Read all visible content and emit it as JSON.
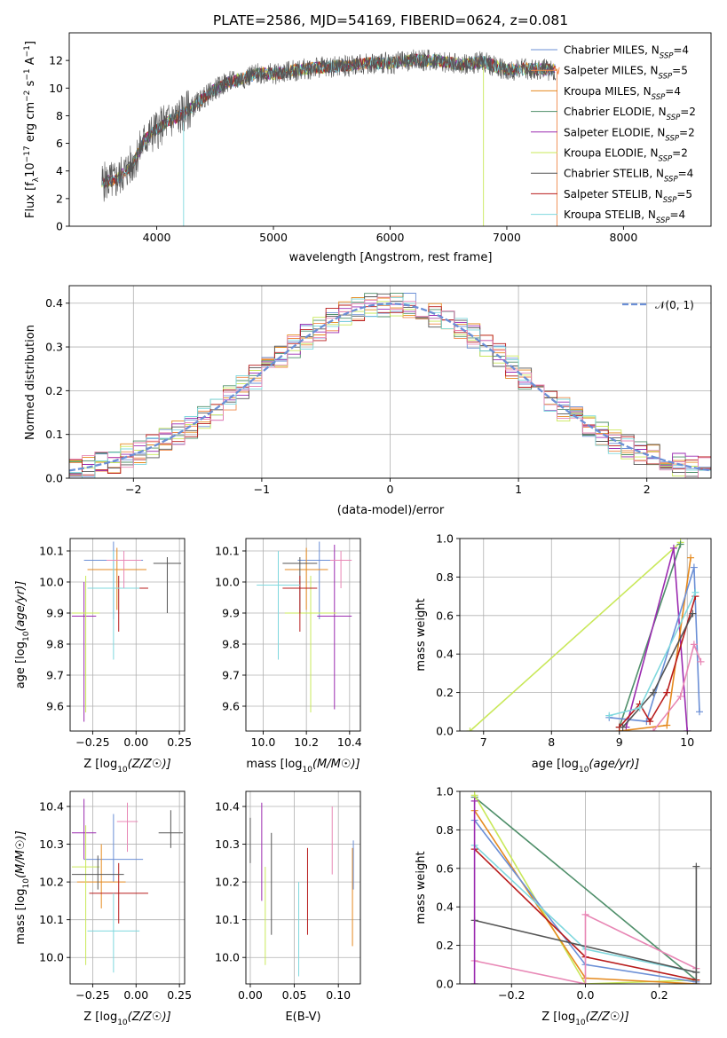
{
  "figure_title": "PLATE=2586, MJD=54169, FIBERID=0624, z=0.081",
  "colors": {
    "c1": "#6b8fd6",
    "c2": "#f08a4b",
    "c3": "#e58a1f",
    "c4": "#4f8f6a",
    "c5": "#9b2bb0",
    "c6": "#c9e85a",
    "c7": "#555555",
    "c8": "#b81c1c",
    "c9": "#7fd8de",
    "c10": "#e887b5",
    "data": "#555555"
  },
  "chart_data": [
    {
      "id": "spectrum",
      "type": "line",
      "title": "PLATE=2586, MJD=54169, FIBERID=0624, z=0.081",
      "xlabel": "wavelength [Angstrom, rest frame]",
      "ylabel": "Flux [fλ10⁻¹⁷ erg cm⁻² s⁻¹ A⁻¹]",
      "xlim": [
        3250,
        8750
      ],
      "ylim": [
        0,
        14
      ],
      "xticks": [
        4000,
        5000,
        6000,
        7000,
        8000
      ],
      "yticks": [
        0,
        2,
        4,
        6,
        8,
        10,
        12
      ],
      "grid": false,
      "legend_position": "right",
      "legend": [
        {
          "label": "Chabrier MILES, N",
          "sub": "SSP",
          "suffix": "=4",
          "color": "c1"
        },
        {
          "label": "Salpeter MILES, N",
          "sub": "SSP",
          "suffix": "=5",
          "color": "c2"
        },
        {
          "label": "Kroupa MILES, N",
          "sub": "SSP",
          "suffix": "=4",
          "color": "c3"
        },
        {
          "label": "Chabrier ELODIE, N",
          "sub": "SSP",
          "suffix": "=2",
          "color": "c4"
        },
        {
          "label": "Salpeter ELODIE, N",
          "sub": "SSP",
          "suffix": "=2",
          "color": "c5"
        },
        {
          "label": "Kroupa ELODIE, N",
          "sub": "SSP",
          "suffix": "=2",
          "color": "c6"
        },
        {
          "label": "Chabrier STELIB, N",
          "sub": "SSP",
          "suffix": "=4",
          "color": "c7"
        },
        {
          "label": "Salpeter STELIB, N",
          "sub": "SSP",
          "suffix": "=5",
          "color": "c8"
        },
        {
          "label": "Kroupa STELIB, N",
          "sub": "SSP",
          "suffix": "=4",
          "color": "c9"
        }
      ],
      "continuum": {
        "x": [
          3530,
          3650,
          3800,
          3900,
          4000,
          4100,
          4200,
          4300,
          4400,
          4500,
          4600,
          4700,
          4800,
          4900,
          5000,
          5200,
          5400,
          5600,
          5800,
          6000,
          6200,
          6400,
          6600,
          6800,
          7000,
          7200,
          7400
        ],
        "y": [
          3.2,
          3.3,
          4.6,
          6.3,
          7.0,
          7.6,
          8.0,
          8.6,
          9.3,
          9.9,
          10.4,
          10.6,
          10.9,
          11.1,
          11.0,
          11.3,
          11.5,
          11.6,
          11.8,
          11.8,
          12.0,
          12.0,
          11.7,
          11.9,
          11.3,
          11.4,
          11.3
        ]
      }
    },
    {
      "id": "residuals",
      "type": "line",
      "xlabel": "(data-model)/error",
      "ylabel": "Normed distribution",
      "xlim": [
        -2.5,
        2.5
      ],
      "ylim": [
        0,
        0.44
      ],
      "xticks": [
        -2,
        -1,
        0,
        1,
        2
      ],
      "yticks": [
        0.0,
        0.1,
        0.2,
        0.3,
        0.4
      ],
      "grid": true,
      "legend_position": "top-right",
      "normal_label": "𝒩(0, 1)"
    },
    {
      "id": "z-vs-age",
      "type": "scatter",
      "xlabel": "Z [log10(Z/Z☉)]",
      "ylabel": "age [log10(age/yr)]",
      "xlim": [
        -0.38,
        0.28
      ],
      "ylim": [
        9.52,
        10.14
      ],
      "xticks": [
        -0.25,
        0.0,
        0.25
      ],
      "yticks": [
        9.6,
        9.7,
        9.8,
        9.9,
        10.0,
        10.1
      ],
      "grid": true,
      "points": [
        {
          "x": -0.13,
          "y": 10.07,
          "xerr": 0.17,
          "ylo": 9.88,
          "yhi": 10.13,
          "color": "c1"
        },
        {
          "x": -0.11,
          "y": 10.04,
          "xerr": 0.17,
          "ylo": 9.91,
          "yhi": 10.11,
          "color": "c3"
        },
        {
          "x": -0.3,
          "y": 9.89,
          "xerr": 0.07,
          "ylo": 9.55,
          "yhi": 10.0,
          "color": "c5"
        },
        {
          "x": -0.29,
          "y": 9.9,
          "xerr": 0.08,
          "ylo": 9.58,
          "yhi": 10.02,
          "color": "c6"
        },
        {
          "x": 0.18,
          "y": 10.06,
          "xerr": 0.08,
          "ylo": 9.9,
          "yhi": 10.08,
          "color": "c7"
        },
        {
          "x": -0.1,
          "y": 9.98,
          "xerr": 0.17,
          "ylo": 9.84,
          "yhi": 10.02,
          "color": "c8"
        },
        {
          "x": -0.13,
          "y": 9.98,
          "xerr": 0.15,
          "ylo": 9.75,
          "yhi": 10.1,
          "color": "c9"
        },
        {
          "x": -0.07,
          "y": 10.07,
          "xerr": 0.1,
          "ylo": 9.98,
          "yhi": 10.1,
          "color": "c10"
        }
      ]
    },
    {
      "id": "mass-vs-age",
      "type": "scatter",
      "xlabel": "mass [log10(M/M☉)]",
      "ylabel": "",
      "xlim": [
        9.92,
        10.45
      ],
      "ylim": [
        9.52,
        10.14
      ],
      "xticks": [
        10.0,
        10.2,
        10.4
      ],
      "yticks": [
        9.6,
        9.7,
        9.8,
        9.9,
        10.0,
        10.1
      ],
      "grid": true,
      "points": [
        {
          "x": 10.26,
          "y": 10.07,
          "xerr": 0.1,
          "ylo": 9.88,
          "yhi": 10.13,
          "color": "c1"
        },
        {
          "x": 10.2,
          "y": 10.04,
          "xerr": 0.1,
          "ylo": 9.91,
          "yhi": 10.11,
          "color": "c3"
        },
        {
          "x": 10.33,
          "y": 9.89,
          "xerr": 0.08,
          "ylo": 9.59,
          "yhi": 10.12,
          "color": "c5"
        },
        {
          "x": 10.22,
          "y": 9.9,
          "xerr": 0.12,
          "ylo": 9.58,
          "yhi": 10.02,
          "color": "c6"
        },
        {
          "x": 10.17,
          "y": 10.06,
          "xerr": 0.08,
          "ylo": 9.9,
          "yhi": 10.08,
          "color": "c7"
        },
        {
          "x": 10.17,
          "y": 9.98,
          "xerr": 0.08,
          "ylo": 9.84,
          "yhi": 10.02,
          "color": "c8"
        },
        {
          "x": 10.07,
          "y": 9.99,
          "xerr": 0.1,
          "ylo": 9.75,
          "yhi": 10.1,
          "color": "c9"
        },
        {
          "x": 10.36,
          "y": 10.07,
          "xerr": 0.05,
          "ylo": 9.98,
          "yhi": 10.1,
          "color": "c10"
        }
      ]
    },
    {
      "id": "age-vs-weight",
      "type": "line",
      "xlabel": "age [log10(age/yr)]",
      "ylabel": "mass weight",
      "xlim": [
        6.65,
        10.35
      ],
      "ylim": [
        0,
        1
      ],
      "xticks": [
        7,
        8,
        9,
        10
      ],
      "yticks": [
        0.0,
        0.2,
        0.4,
        0.6,
        0.8,
        1.0
      ],
      "grid": true,
      "series": [
        {
          "color": "c6",
          "x": [
            6.8,
            9.9
          ],
          "y": [
            0.0,
            0.98
          ]
        },
        {
          "color": "c4",
          "x": [
            9.0,
            9.9
          ],
          "y": [
            0.02,
            0.97
          ]
        },
        {
          "color": "c5",
          "x": [
            9.1,
            9.8,
            10.0
          ],
          "y": [
            0.02,
            0.95,
            0.0
          ]
        },
        {
          "color": "c3",
          "x": [
            9.0,
            9.7,
            10.05
          ],
          "y": [
            0.0,
            0.03,
            0.9
          ]
        },
        {
          "color": "c1",
          "x": [
            8.85,
            9.4,
            10.1,
            10.18
          ],
          "y": [
            0.07,
            0.05,
            0.85,
            0.1
          ]
        },
        {
          "color": "c8",
          "x": [
            9.0,
            9.3,
            9.45,
            9.7,
            10.12
          ],
          "y": [
            0.02,
            0.14,
            0.05,
            0.2,
            0.7
          ]
        },
        {
          "color": "c7",
          "x": [
            9.05,
            9.5,
            10.08
          ],
          "y": [
            0.02,
            0.2,
            0.61
          ]
        },
        {
          "color": "c9",
          "x": [
            8.85,
            9.3,
            10.12
          ],
          "y": [
            0.08,
            0.12,
            0.72
          ]
        },
        {
          "color": "c10",
          "x": [
            9.5,
            9.9,
            10.1,
            10.2
          ],
          "y": [
            0.0,
            0.18,
            0.45,
            0.36
          ]
        }
      ]
    },
    {
      "id": "z-vs-mass",
      "type": "scatter",
      "xlabel": "Z [log10(Z/Z☉)]",
      "ylabel": "mass [log10(M/M☉)]",
      "xlim": [
        -0.38,
        0.28
      ],
      "ylim": [
        9.93,
        10.44
      ],
      "xticks": [
        -0.25,
        0.0,
        0.25
      ],
      "yticks": [
        10.0,
        10.1,
        10.2,
        10.3,
        10.4
      ],
      "grid": true,
      "points": [
        {
          "x": -0.13,
          "y": 10.26,
          "xerr": 0.17,
          "ylo": 10.2,
          "yhi": 10.38,
          "color": "c1"
        },
        {
          "x": -0.2,
          "y": 10.2,
          "xerr": 0.14,
          "ylo": 10.13,
          "yhi": 10.3,
          "color": "c3"
        },
        {
          "x": -0.3,
          "y": 10.33,
          "xerr": 0.07,
          "ylo": 10.26,
          "yhi": 10.42,
          "color": "c5"
        },
        {
          "x": -0.29,
          "y": 10.24,
          "xerr": 0.08,
          "ylo": 9.98,
          "yhi": 10.35,
          "color": "c6"
        },
        {
          "x": 0.2,
          "y": 10.33,
          "xerr": 0.07,
          "ylo": 10.29,
          "yhi": 10.39,
          "color": "c7"
        },
        {
          "x": -0.1,
          "y": 10.17,
          "xerr": 0.17,
          "ylo": 10.09,
          "yhi": 10.25,
          "color": "c8"
        },
        {
          "x": -0.13,
          "y": 10.07,
          "xerr": 0.15,
          "ylo": 9.96,
          "yhi": 10.17,
          "color": "c9"
        },
        {
          "x": -0.05,
          "y": 10.36,
          "xerr": 0.06,
          "ylo": 10.28,
          "yhi": 10.41,
          "color": "c10"
        },
        {
          "x": -0.22,
          "y": 10.22,
          "xerr": 0.15,
          "ylo": 10.18,
          "yhi": 10.27,
          "color": "c7"
        }
      ]
    },
    {
      "id": "ebv-vs-mass",
      "type": "scatter",
      "xlabel": "E(B-V)",
      "ylabel": "",
      "xlim": [
        -0.005,
        0.125
      ],
      "ylim": [
        9.93,
        10.44
      ],
      "xticks": [
        0.0,
        0.05,
        0.1
      ],
      "yticks": [
        10.0,
        10.1,
        10.2,
        10.3,
        10.4
      ],
      "grid": true,
      "points": [
        {
          "x": 0.0,
          "ylo": 10.25,
          "yhi": 10.37,
          "color": "c7"
        },
        {
          "x": 0.013,
          "ylo": 10.15,
          "yhi": 10.41,
          "color": "c5"
        },
        {
          "x": 0.017,
          "ylo": 9.98,
          "yhi": 10.24,
          "color": "c6"
        },
        {
          "x": 0.024,
          "ylo": 10.06,
          "yhi": 10.33,
          "color": "c7"
        },
        {
          "x": 0.055,
          "ylo": 9.95,
          "yhi": 10.2,
          "color": "c9"
        },
        {
          "x": 0.065,
          "ylo": 10.06,
          "yhi": 10.29,
          "color": "c8"
        },
        {
          "x": 0.093,
          "ylo": 10.22,
          "yhi": 10.4,
          "color": "c10"
        },
        {
          "x": 0.116,
          "ylo": 10.03,
          "yhi": 10.29,
          "color": "c3"
        },
        {
          "x": 0.117,
          "ylo": 10.18,
          "yhi": 10.31,
          "color": "c1"
        }
      ]
    },
    {
      "id": "z-vs-weight",
      "type": "line",
      "xlabel": "Z [log10(Z/Z☉)]",
      "ylabel": "mass weight",
      "xlim": [
        -0.34,
        0.34
      ],
      "ylim": [
        0,
        1
      ],
      "xticks": [
        -0.2,
        0.0,
        0.2
      ],
      "yticks": [
        0.0,
        0.2,
        0.4,
        0.6,
        0.8,
        1.0
      ],
      "grid": true,
      "series": [
        {
          "color": "c4",
          "x": [
            -0.3,
            0.3
          ],
          "y": [
            0.97,
            0.02
          ]
        },
        {
          "color": "c6",
          "x": [
            -0.3,
            0.0,
            0.3
          ],
          "y": [
            0.98,
            0.0,
            0.02
          ]
        },
        {
          "color": "c3",
          "x": [
            -0.3,
            0.0,
            0.3
          ],
          "y": [
            0.9,
            0.03,
            0.0
          ]
        },
        {
          "color": "c1",
          "x": [
            -0.3,
            0.0,
            0.3
          ],
          "y": [
            0.85,
            0.1,
            0.01
          ]
        },
        {
          "color": "c9",
          "x": [
            -0.3,
            0.0,
            0.3
          ],
          "y": [
            0.72,
            0.18,
            0.06
          ]
        },
        {
          "color": "c8",
          "x": [
            -0.3,
            0.0,
            0.3
          ],
          "y": [
            0.7,
            0.14,
            0.02
          ]
        },
        {
          "color": "c7",
          "x": [
            -0.3,
            0.3
          ],
          "y": [
            0.33,
            0.06
          ]
        },
        {
          "color": "c10",
          "x": [
            -0.3,
            0.0,
            0.0,
            0.3
          ],
          "y": [
            0.12,
            0.0,
            0.36,
            0.08
          ]
        },
        {
          "color": "c5",
          "x": [
            -0.3,
            -0.3
          ],
          "y": [
            0.0,
            0.95
          ]
        },
        {
          "color": "c7",
          "x": [
            0.3,
            0.3
          ],
          "y": [
            0.0,
            0.61
          ]
        }
      ]
    }
  ]
}
